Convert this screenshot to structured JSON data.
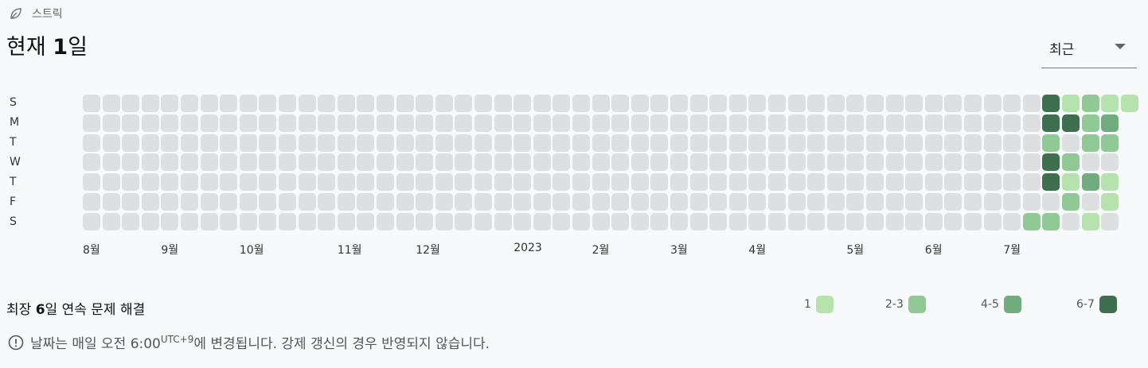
{
  "section": {
    "label": "스트릭",
    "icon": "leaf-icon"
  },
  "title": {
    "prefix": "현재 ",
    "count": "1",
    "suffix": "일"
  },
  "dropdown": {
    "selected": "최근"
  },
  "day_labels": [
    "S",
    "M",
    "T",
    "W",
    "T",
    "F",
    "S"
  ],
  "months": [
    {
      "label": "8월",
      "col": 0
    },
    {
      "label": "9월",
      "col": 4
    },
    {
      "label": "10월",
      "col": 8
    },
    {
      "label": "11월",
      "col": 13
    },
    {
      "label": "12월",
      "col": 17
    },
    {
      "label": "2023",
      "col": 22
    },
    {
      "label": "2월",
      "col": 26
    },
    {
      "label": "3월",
      "col": 30
    },
    {
      "label": "4월",
      "col": 34
    },
    {
      "label": "5월",
      "col": 39
    },
    {
      "label": "6월",
      "col": 43
    },
    {
      "label": "7월",
      "col": 47
    }
  ],
  "heatmap": {
    "weeks": 53,
    "first_week_start_row": 0,
    "last_week_end_row": 0,
    "levels": {
      "48": [
        0,
        0,
        0,
        0,
        0,
        0,
        2
      ],
      "49": [
        4,
        4,
        2,
        4,
        4,
        0,
        2
      ],
      "50": [
        1,
        4,
        0,
        2,
        1,
        2,
        0
      ],
      "51": [
        2,
        2,
        2,
        0,
        3,
        0,
        1
      ],
      "52": [
        1,
        3,
        2,
        0,
        1,
        1,
        0
      ],
      "53": [
        1,
        0,
        0,
        0,
        0,
        0,
        0
      ]
    }
  },
  "legend": [
    {
      "label": "1",
      "color": "#b5e2ad"
    },
    {
      "label": "2-3",
      "color": "#90c995"
    },
    {
      "label": "4-5",
      "color": "#70ac7e"
    },
    {
      "label": "6-7",
      "color": "#3e7050"
    }
  ],
  "empty_color": "#dedfe1",
  "longest": {
    "prefix": "최장 ",
    "count": "6",
    "suffix": "일 연속 문제 해결"
  },
  "notice": {
    "before": "날짜는 매일 오전 6:00",
    "tz": "UTC+9",
    "after": "에 변경됩니다. 강제 갱신의 경우 반영되지 않습니다."
  }
}
